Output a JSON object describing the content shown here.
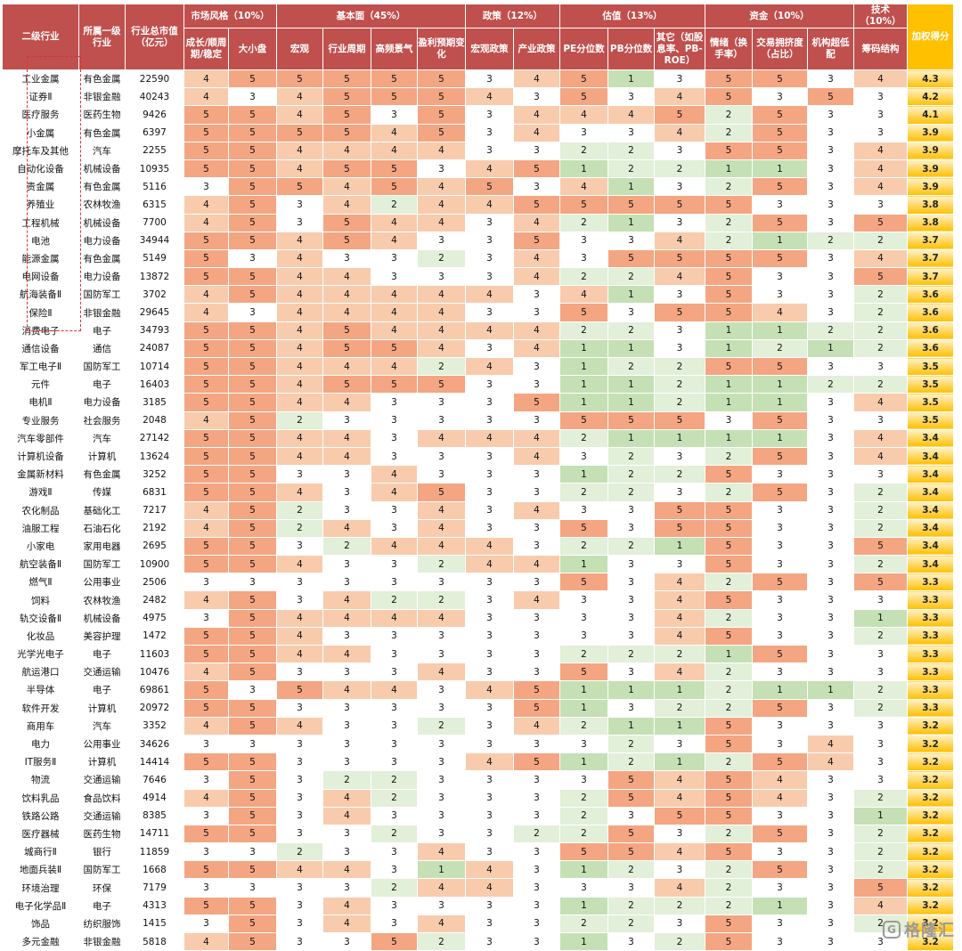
{
  "table": {
    "h_industry": "二级行业",
    "h_parent": "所属一级行业",
    "h_mcap": "行业总市值（亿元）",
    "h_score": "加权得分",
    "groups": [
      {
        "label": "市场风格（10%）",
        "span": 2
      },
      {
        "label": "基本面（45%）",
        "span": 4
      },
      {
        "label": "政策（12%）",
        "span": 2
      },
      {
        "label": "估值（13%）",
        "span": 3
      },
      {
        "label": "资金（10%）",
        "span": 3
      },
      {
        "label": "技术（10%）",
        "span": 1
      }
    ],
    "columns": [
      "成长/顺周期/稳定",
      "大小盘",
      "宏观",
      "行业周期",
      "高频景气",
      "盈利预期变化",
      "宏观政策",
      "产业政策",
      "PE分位数",
      "PB分位数",
      "其它（如股息率、PB-ROE）",
      "情绪（换手率）",
      "交易拥挤度（占比）",
      "机构超低配",
      "筹码结构"
    ],
    "rows": [
      {
        "name": "工业金属",
        "parent": "有色金属",
        "mcap": "22590",
        "scores": [
          4,
          5,
          5,
          5,
          5,
          5,
          3,
          4,
          5,
          1,
          3,
          5,
          5,
          3,
          4
        ],
        "total": "4.3"
      },
      {
        "name": "证券Ⅱ",
        "parent": "非银金融",
        "mcap": "40243",
        "scores": [
          4,
          3,
          4,
          5,
          5,
          5,
          4,
          3,
          5,
          3,
          4,
          5,
          3,
          5,
          3
        ],
        "total": "4.2"
      },
      {
        "name": "医疗服务",
        "parent": "医药生物",
        "mcap": "9426",
        "scores": [
          5,
          5,
          4,
          5,
          3,
          5,
          3,
          4,
          4,
          4,
          5,
          2,
          5,
          3,
          3
        ],
        "total": "4.1"
      },
      {
        "name": "小金属",
        "parent": "有色金属",
        "mcap": "6397",
        "scores": [
          5,
          5,
          5,
          5,
          4,
          5,
          3,
          4,
          3,
          3,
          4,
          2,
          5,
          3,
          3
        ],
        "total": "3.9"
      },
      {
        "name": "摩托车及其他",
        "parent": "汽车",
        "mcap": "2255",
        "scores": [
          5,
          5,
          4,
          4,
          4,
          4,
          3,
          3,
          2,
          2,
          3,
          5,
          5,
          3,
          4
        ],
        "total": "3.9"
      },
      {
        "name": "自动化设备",
        "parent": "机械设备",
        "mcap": "10935",
        "scores": [
          5,
          5,
          4,
          5,
          5,
          3,
          4,
          5,
          1,
          2,
          2,
          1,
          1,
          3,
          4
        ],
        "total": "3.9"
      },
      {
        "name": "贵金属",
        "parent": "有色金属",
        "mcap": "5116",
        "scores": [
          3,
          5,
          5,
          4,
          5,
          4,
          5,
          3,
          4,
          1,
          3,
          2,
          5,
          3,
          4
        ],
        "total": "3.9"
      },
      {
        "name": "养殖业",
        "parent": "农林牧渔",
        "mcap": "6315",
        "scores": [
          4,
          5,
          3,
          4,
          2,
          4,
          4,
          5,
          5,
          5,
          5,
          5,
          3,
          3,
          3
        ],
        "total": "3.8"
      },
      {
        "name": "工程机械",
        "parent": "机械设备",
        "mcap": "7700",
        "scores": [
          4,
          5,
          3,
          5,
          4,
          4,
          3,
          4,
          2,
          1,
          3,
          2,
          5,
          3,
          5
        ],
        "total": "3.8"
      },
      {
        "name": "电池",
        "parent": "电力设备",
        "mcap": "34944",
        "scores": [
          5,
          5,
          4,
          5,
          4,
          3,
          3,
          5,
          3,
          3,
          4,
          2,
          1,
          2,
          2
        ],
        "total": "3.7"
      },
      {
        "name": "能源金属",
        "parent": "有色金属",
        "mcap": "5149",
        "scores": [
          5,
          3,
          4,
          3,
          3,
          2,
          3,
          4,
          3,
          5,
          5,
          5,
          5,
          3,
          4
        ],
        "total": "3.7"
      },
      {
        "name": "电网设备",
        "parent": "电力设备",
        "mcap": "13872",
        "scores": [
          5,
          5,
          4,
          4,
          3,
          3,
          3,
          4,
          2,
          2,
          4,
          5,
          3,
          3,
          5
        ],
        "total": "3.7"
      },
      {
        "name": "航海装备Ⅱ",
        "parent": "国防军工",
        "mcap": "3702",
        "scores": [
          4,
          5,
          4,
          4,
          4,
          4,
          4,
          3,
          4,
          1,
          3,
          5,
          3,
          3,
          2
        ],
        "total": "3.6"
      },
      {
        "name": "保险Ⅱ",
        "parent": "非银金融",
        "mcap": "29645",
        "scores": [
          4,
          3,
          4,
          4,
          4,
          4,
          3,
          3,
          5,
          3,
          5,
          5,
          4,
          3,
          2
        ],
        "total": "3.6"
      },
      {
        "name": "消费电子",
        "parent": "电子",
        "mcap": "34793",
        "scores": [
          5,
          5,
          4,
          5,
          4,
          4,
          4,
          4,
          2,
          2,
          3,
          1,
          1,
          2,
          2
        ],
        "total": "3.6"
      },
      {
        "name": "通信设备",
        "parent": "通信",
        "mcap": "24087",
        "scores": [
          5,
          5,
          4,
          5,
          5,
          4,
          3,
          4,
          1,
          1,
          3,
          1,
          2,
          1,
          2
        ],
        "total": "3.6"
      },
      {
        "name": "军工电子Ⅱ",
        "parent": "国防军工",
        "mcap": "10714",
        "scores": [
          5,
          5,
          4,
          4,
          4,
          2,
          4,
          3,
          1,
          2,
          2,
          5,
          5,
          3,
          3
        ],
        "total": "3.5"
      },
      {
        "name": "元件",
        "parent": "电子",
        "mcap": "16403",
        "scores": [
          5,
          5,
          4,
          5,
          5,
          5,
          3,
          3,
          1,
          1,
          2,
          1,
          1,
          2,
          2
        ],
        "total": "3.5"
      },
      {
        "name": "电机Ⅱ",
        "parent": "电力设备",
        "mcap": "3185",
        "scores": [
          5,
          5,
          4,
          4,
          3,
          3,
          3,
          5,
          1,
          1,
          2,
          1,
          1,
          3,
          4
        ],
        "total": "3.5"
      },
      {
        "name": "专业服务",
        "parent": "社会服务",
        "mcap": "2048",
        "scores": [
          4,
          5,
          2,
          3,
          3,
          3,
          3,
          3,
          5,
          5,
          5,
          3,
          5,
          3,
          3
        ],
        "total": "3.5"
      },
      {
        "name": "汽车零部件",
        "parent": "汽车",
        "mcap": "27142",
        "scores": [
          5,
          5,
          4,
          4,
          3,
          4,
          4,
          4,
          2,
          1,
          1,
          1,
          1,
          3,
          4
        ],
        "total": "3.4"
      },
      {
        "name": "计算机设备",
        "parent": "计算机",
        "mcap": "13624",
        "scores": [
          5,
          5,
          4,
          4,
          3,
          3,
          3,
          4,
          3,
          2,
          3,
          2,
          5,
          3,
          4
        ],
        "total": "3.4"
      },
      {
        "name": "金属新材料",
        "parent": "有色金属",
        "mcap": "3252",
        "scores": [
          5,
          5,
          3,
          3,
          4,
          3,
          3,
          3,
          1,
          2,
          2,
          5,
          3,
          3,
          3
        ],
        "total": "3.4"
      },
      {
        "name": "游戏Ⅱ",
        "parent": "传媒",
        "mcap": "6831",
        "scores": [
          5,
          5,
          4,
          3,
          4,
          5,
          3,
          3,
          2,
          2,
          3,
          2,
          5,
          3,
          2
        ],
        "total": "3.4"
      },
      {
        "name": "农化制品",
        "parent": "基础化工",
        "mcap": "7217",
        "scores": [
          4,
          5,
          2,
          3,
          3,
          4,
          3,
          4,
          3,
          3,
          5,
          5,
          3,
          3,
          2
        ],
        "total": "3.4"
      },
      {
        "name": "油服工程",
        "parent": "石油石化",
        "mcap": "2192",
        "scores": [
          4,
          5,
          2,
          4,
          3,
          4,
          3,
          3,
          5,
          3,
          5,
          5,
          3,
          3,
          2
        ],
        "total": "3.4"
      },
      {
        "name": "小家电",
        "parent": "家用电器",
        "mcap": "2695",
        "scores": [
          5,
          5,
          3,
          2,
          4,
          4,
          4,
          3,
          2,
          2,
          1,
          5,
          3,
          3,
          5
        ],
        "total": "3.4"
      },
      {
        "name": "航空装备Ⅱ",
        "parent": "国防军工",
        "mcap": "10900",
        "scores": [
          5,
          5,
          4,
          3,
          3,
          2,
          4,
          4,
          1,
          3,
          3,
          5,
          3,
          3,
          2
        ],
        "total": "3.4"
      },
      {
        "name": "燃气Ⅱ",
        "parent": "公用事业",
        "mcap": "2506",
        "scores": [
          3,
          3,
          3,
          3,
          3,
          3,
          3,
          3,
          5,
          3,
          4,
          2,
          5,
          3,
          5
        ],
        "total": "3.3"
      },
      {
        "name": "饲料",
        "parent": "农林牧渔",
        "mcap": "2482",
        "scores": [
          4,
          5,
          3,
          4,
          2,
          2,
          3,
          4,
          3,
          3,
          4,
          5,
          3,
          3,
          3
        ],
        "total": "3.3"
      },
      {
        "name": "轨交设备Ⅱ",
        "parent": "机械设备",
        "mcap": "4975",
        "scores": [
          3,
          5,
          4,
          4,
          4,
          4,
          3,
          3,
          3,
          3,
          4,
          2,
          3,
          3,
          1
        ],
        "total": "3.3"
      },
      {
        "name": "化妆品",
        "parent": "美容护理",
        "mcap": "1472",
        "scores": [
          5,
          5,
          4,
          3,
          3,
          3,
          3,
          3,
          3,
          3,
          4,
          5,
          3,
          3,
          2
        ],
        "total": "3.3"
      },
      {
        "name": "光学光电子",
        "parent": "电子",
        "mcap": "11603",
        "scores": [
          5,
          5,
          4,
          4,
          3,
          3,
          3,
          3,
          2,
          2,
          2,
          1,
          5,
          3,
          3
        ],
        "total": "3.3"
      },
      {
        "name": "航运港口",
        "parent": "交通运输",
        "mcap": "10476",
        "scores": [
          4,
          5,
          3,
          3,
          3,
          4,
          3,
          3,
          5,
          3,
          4,
          2,
          3,
          3,
          3
        ],
        "total": "3.3"
      },
      {
        "name": "半导体",
        "parent": "电子",
        "mcap": "69861",
        "scores": [
          5,
          3,
          5,
          4,
          4,
          3,
          4,
          5,
          1,
          1,
          1,
          2,
          1,
          1,
          2
        ],
        "total": "3.3"
      },
      {
        "name": "软件开发",
        "parent": "计算机",
        "mcap": "20972",
        "scores": [
          5,
          5,
          3,
          3,
          3,
          3,
          3,
          5,
          1,
          3,
          2,
          2,
          5,
          3,
          2
        ],
        "total": "3.3"
      },
      {
        "name": "商用车",
        "parent": "汽车",
        "mcap": "3352",
        "scores": [
          4,
          5,
          4,
          3,
          3,
          2,
          3,
          4,
          2,
          1,
          1,
          5,
          3,
          3,
          3
        ],
        "total": "3.2"
      },
      {
        "name": "电力",
        "parent": "公用事业",
        "mcap": "34626",
        "scores": [
          3,
          3,
          3,
          3,
          3,
          3,
          3,
          3,
          3,
          2,
          3,
          5,
          3,
          4,
          3
        ],
        "total": "3.2"
      },
      {
        "name": "IT服务Ⅱ",
        "parent": "计算机",
        "mcap": "14414",
        "scores": [
          5,
          5,
          3,
          3,
          3,
          3,
          4,
          5,
          1,
          2,
          1,
          2,
          5,
          4,
          3
        ],
        "total": "3.2"
      },
      {
        "name": "物流",
        "parent": "交通运输",
        "mcap": "7646",
        "scores": [
          3,
          5,
          3,
          2,
          2,
          3,
          3,
          3,
          3,
          5,
          4,
          5,
          4,
          3,
          3
        ],
        "total": "3.2"
      },
      {
        "name": "饮料乳品",
        "parent": "食品饮料",
        "mcap": "4914",
        "scores": [
          4,
          5,
          3,
          4,
          2,
          3,
          3,
          3,
          2,
          5,
          4,
          5,
          4,
          3,
          2
        ],
        "total": "3.2"
      },
      {
        "name": "铁路公路",
        "parent": "交通运输",
        "mcap": "8385",
        "scores": [
          3,
          5,
          3,
          4,
          3,
          3,
          3,
          3,
          2,
          3,
          5,
          5,
          3,
          3,
          1
        ],
        "total": "3.2"
      },
      {
        "name": "医疗器械",
        "parent": "医药生物",
        "mcap": "14711",
        "scores": [
          5,
          5,
          3,
          3,
          2,
          3,
          3,
          2,
          2,
          5,
          3,
          2,
          5,
          3,
          2
        ],
        "total": "3.2"
      },
      {
        "name": "城商行Ⅱ",
        "parent": "银行",
        "mcap": "11859",
        "scores": [
          3,
          3,
          2,
          3,
          3,
          4,
          3,
          3,
          5,
          5,
          4,
          5,
          3,
          3,
          2
        ],
        "total": "3.2"
      },
      {
        "name": "地面兵装Ⅱ",
        "parent": "国防军工",
        "mcap": "1668",
        "scores": [
          5,
          5,
          4,
          4,
          3,
          1,
          4,
          3,
          1,
          2,
          3,
          2,
          5,
          3,
          2
        ],
        "total": "3.2"
      },
      {
        "name": "环境治理",
        "parent": "环保",
        "mcap": "7179",
        "scores": [
          3,
          3,
          3,
          3,
          2,
          4,
          4,
          3,
          3,
          3,
          4,
          2,
          3,
          3,
          5
        ],
        "total": "3.2"
      },
      {
        "name": "电子化学品Ⅱ",
        "parent": "电子",
        "mcap": "4313",
        "scores": [
          5,
          5,
          3,
          4,
          3,
          3,
          3,
          3,
          1,
          2,
          2,
          2,
          1,
          3,
          4
        ],
        "total": "3.2"
      },
      {
        "name": "饰品",
        "parent": "纺织服饰",
        "mcap": "1415",
        "scores": [
          3,
          5,
          3,
          4,
          3,
          4,
          3,
          3,
          2,
          2,
          3,
          5,
          3,
          3,
          2
        ],
        "total": "3.2"
      },
      {
        "name": "多元金融",
        "parent": "非银金融",
        "mcap": "5818",
        "scores": [
          4,
          5,
          3,
          3,
          5,
          2,
          3,
          3,
          1,
          3,
          2,
          5,
          3,
          3,
          3
        ],
        "total": "3.2"
      }
    ]
  },
  "watermark": {
    "icon": "gelonghui-logo-icon",
    "text": "格隆汇"
  },
  "colors": {
    "header": "#c0504d",
    "score_5": "#f4a582",
    "score_4": "#f8cbad",
    "score_3": "#ffffff",
    "score_2": "#e2efd9",
    "score_1": "#c5e0b4",
    "total": "#ffc000"
  }
}
